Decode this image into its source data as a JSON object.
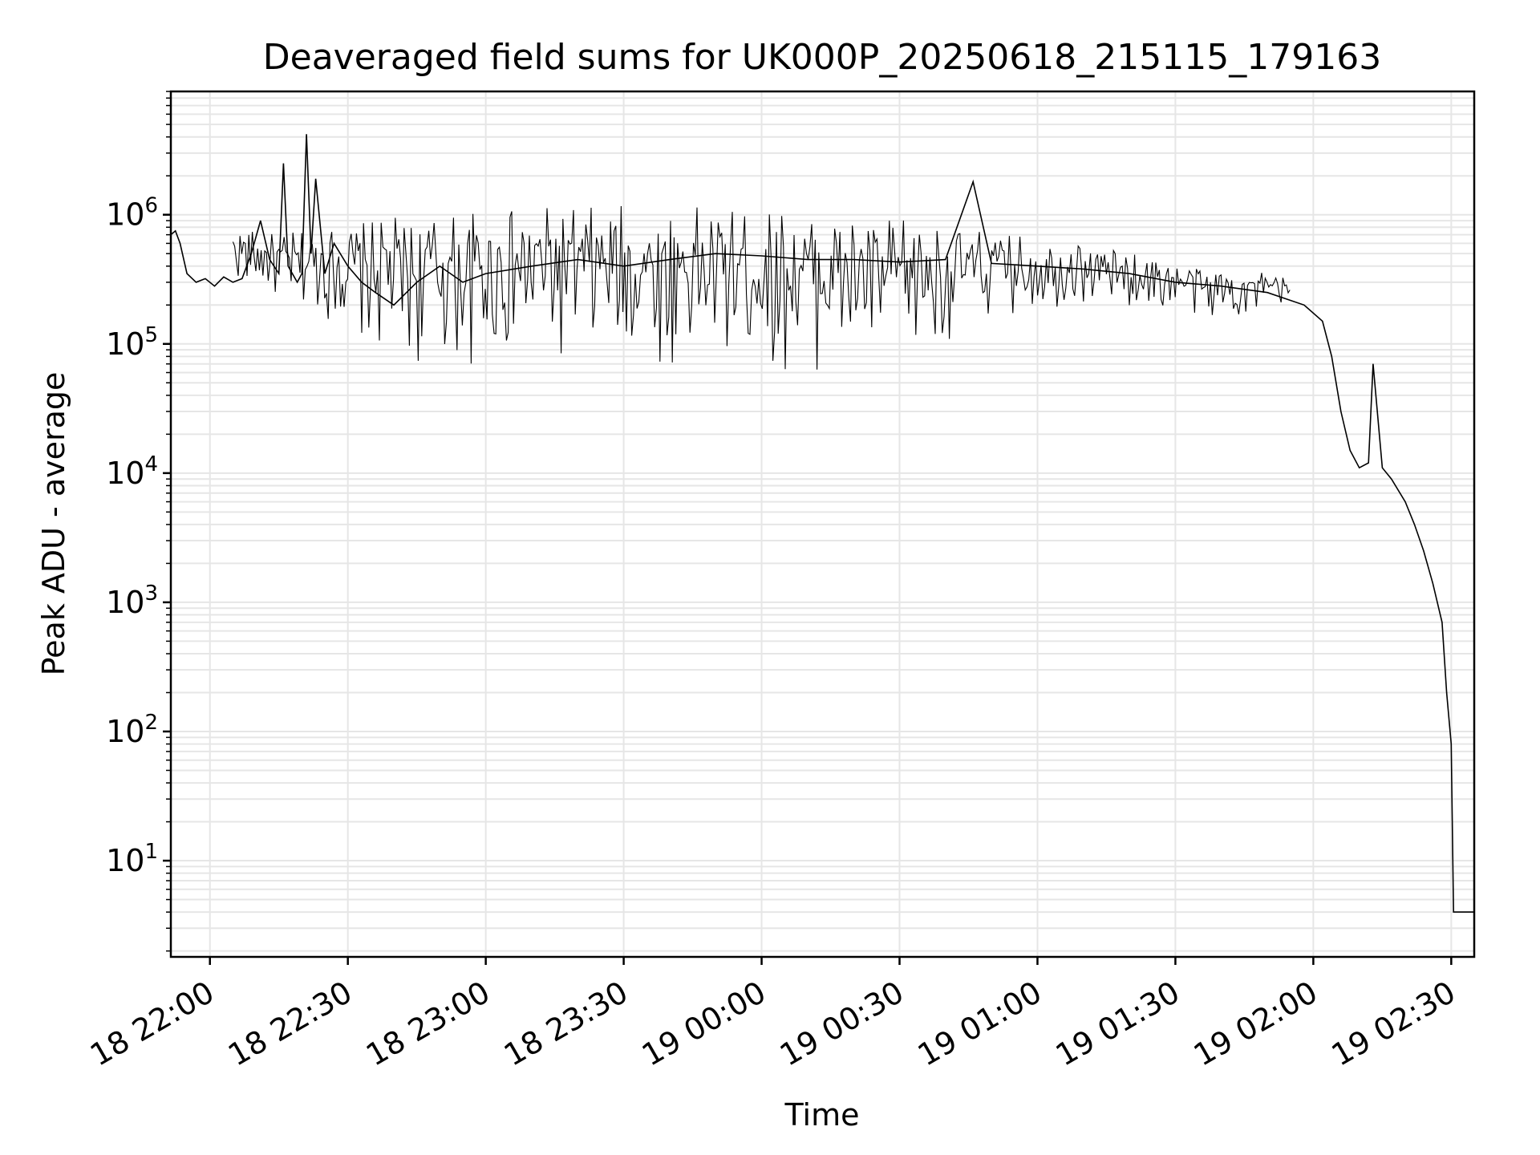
{
  "chart_data": {
    "type": "line",
    "title": "Deaveraged field sums for UK000P_20250618_215115_179163",
    "xlabel": "Time",
    "ylabel": "Peak ADU - average",
    "x_scale": "time",
    "y_scale": "log",
    "xlim": [
      "2025-06-18T21:51:30",
      "2025-06-19T02:35:00"
    ],
    "ylim": [
      1.8,
      9000000
    ],
    "x_ticks": [
      "2025-06-18T22:00",
      "2025-06-18T22:30",
      "2025-06-18T23:00",
      "2025-06-18T23:30",
      "2025-06-19T00:00",
      "2025-06-19T00:30",
      "2025-06-19T01:00",
      "2025-06-19T01:30",
      "2025-06-19T02:00",
      "2025-06-19T02:30"
    ],
    "x_tick_labels": [
      "18 22:00",
      "18 22:30",
      "18 23:00",
      "18 23:30",
      "19 00:00",
      "19 00:30",
      "19 01:00",
      "19 01:30",
      "19 02:00",
      "19 02:30"
    ],
    "y_tick_labels": [
      {
        "base": "10",
        "exp": "1"
      },
      {
        "base": "10",
        "exp": "2"
      },
      {
        "base": "10",
        "exp": "3"
      },
      {
        "base": "10",
        "exp": "4"
      },
      {
        "base": "10",
        "exp": "5"
      },
      {
        "base": "10",
        "exp": "6"
      }
    ],
    "grid": true,
    "series": [
      {
        "color": "#000000",
        "x": [
          "2025-06-18T21:51:30",
          "2025-06-18T21:52:30",
          "2025-06-18T21:53:30",
          "2025-06-18T21:55:00",
          "2025-06-18T21:57:00",
          "2025-06-18T21:59:00",
          "2025-06-18T22:01:00",
          "2025-06-18T22:03:00",
          "2025-06-18T22:05:00",
          "2025-06-18T22:07:00",
          "2025-06-18T22:09:00",
          "2025-06-18T22:11:00",
          "2025-06-18T22:13:00",
          "2025-06-18T22:15:00",
          "2025-06-18T22:16:00",
          "2025-06-18T22:17:00",
          "2025-06-18T22:19:00",
          "2025-06-18T22:20:00",
          "2025-06-18T22:21:00",
          "2025-06-18T22:22:00",
          "2025-06-18T22:23:00",
          "2025-06-18T22:25:00",
          "2025-06-18T22:27:00",
          "2025-06-18T22:30:00",
          "2025-06-18T22:33:00",
          "2025-06-18T22:36:00",
          "2025-06-18T22:40:00",
          "2025-06-18T22:45:00",
          "2025-06-18T22:50:00",
          "2025-06-18T22:55:00",
          "2025-06-18T23:00:00",
          "2025-06-18T23:10:00",
          "2025-06-18T23:20:00",
          "2025-06-18T23:30:00",
          "2025-06-18T23:40:00",
          "2025-06-18T23:50:00",
          "2025-06-19T00:00:00",
          "2025-06-19T00:10:00",
          "2025-06-19T00:20:00",
          "2025-06-19T00:30:00",
          "2025-06-19T00:40:00",
          "2025-06-19T00:46:00",
          "2025-06-19T00:50:00",
          "2025-06-19T01:00:00",
          "2025-06-19T01:10:00",
          "2025-06-19T01:20:00",
          "2025-06-19T01:30:00",
          "2025-06-19T01:40:00",
          "2025-06-19T01:50:00",
          "2025-06-19T01:58:00",
          "2025-06-19T02:02:00",
          "2025-06-19T02:04:00",
          "2025-06-19T02:06:00",
          "2025-06-19T02:08:00",
          "2025-06-19T02:10:00",
          "2025-06-19T02:12:00",
          "2025-06-19T02:13:00",
          "2025-06-19T02:15:00",
          "2025-06-19T02:17:00",
          "2025-06-19T02:20:00",
          "2025-06-19T02:22:00",
          "2025-06-19T02:24:00",
          "2025-06-19T02:26:00",
          "2025-06-19T02:28:00",
          "2025-06-19T02:29:00",
          "2025-06-19T02:30:00",
          "2025-06-19T02:30:30",
          "2025-06-19T02:31:00",
          "2025-06-19T02:33:00",
          "2025-06-19T02:35:00"
        ],
        "y": [
          700000,
          750000,
          600000,
          350000,
          300000,
          320000,
          280000,
          330000,
          300000,
          320000,
          500000,
          900000,
          450000,
          350000,
          2500000,
          400000,
          300000,
          350000,
          4200000,
          500000,
          1900000,
          350000,
          600000,
          400000,
          300000,
          250000,
          200000,
          300000,
          400000,
          300000,
          350000,
          400000,
          450000,
          400000,
          450000,
          500000,
          480000,
          450000,
          450000,
          430000,
          450000,
          1800000,
          420000,
          400000,
          380000,
          350000,
          300000,
          280000,
          250000,
          200000,
          150000,
          80000,
          30000,
          15000,
          11000,
          12000,
          70000,
          11000,
          9000,
          6000,
          4000,
          2500,
          1400,
          700,
          200,
          80,
          4,
          4,
          4,
          4
        ],
        "band_low": [
          300000,
          200000,
          150000,
          80000,
          60000,
          60000,
          60000,
          60000,
          60000,
          60000,
          60000,
          60000,
          60000,
          60000,
          45000,
          80000,
          120000,
          150000,
          180000,
          200000,
          150000,
          140000
        ],
        "band_high": [
          800000,
          700000,
          800000,
          900000,
          1000000,
          1050000,
          1100000,
          1150000,
          1200000,
          1200000,
          1150000,
          1100000,
          1050000,
          1000000,
          1000000,
          850000,
          750000,
          700000,
          650000,
          550000,
          400000,
          350000
        ],
        "band_x": [
          "2025-06-18T22:05:00",
          "2025-06-18T22:15:00",
          "2025-06-18T22:25:00",
          "2025-06-18T22:35:00",
          "2025-06-18T22:45:00",
          "2025-06-18T22:55:00",
          "2025-06-18T23:05:00",
          "2025-06-18T23:15:00",
          "2025-06-18T23:25:00",
          "2025-06-18T23:35:00",
          "2025-06-18T23:45:00",
          "2025-06-18T23:55:00",
          "2025-06-19T00:05:00",
          "2025-06-19T00:15:00",
          "2025-06-19T00:25:00",
          "2025-06-19T00:35:00",
          "2025-06-19T00:45:00",
          "2025-06-19T00:55:00",
          "2025-06-19T01:05:00",
          "2025-06-19T01:15:00",
          "2025-06-19T01:35:00",
          "2025-06-19T01:55:00"
        ]
      }
    ]
  }
}
